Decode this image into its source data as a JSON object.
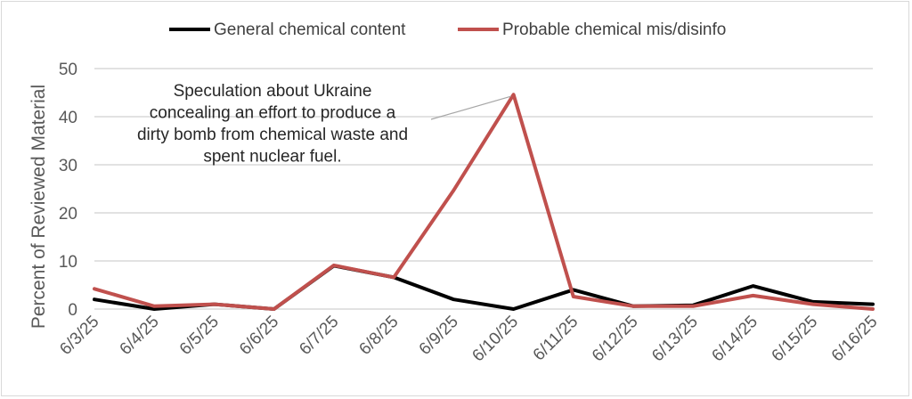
{
  "chart_data": {
    "type": "line",
    "categories": [
      "6/3/25",
      "6/4/25",
      "6/5/25",
      "6/6/25",
      "6/7/25",
      "6/8/25",
      "6/9/25",
      "6/10/25",
      "6/11/25",
      "6/12/25",
      "6/13/25",
      "6/14/25",
      "6/15/25",
      "6/16/25"
    ],
    "series": [
      {
        "name": "General chemical content",
        "color": "#000000",
        "values": [
          2.0,
          0.0,
          1.0,
          0.0,
          9.0,
          6.6,
          2.0,
          0.0,
          4.0,
          0.6,
          0.8,
          4.8,
          1.5,
          1.0
        ]
      },
      {
        "name": "Probable chemical mis/disinfo",
        "color": "#c0504d",
        "values": [
          4.2,
          0.6,
          1.0,
          0.0,
          9.1,
          6.6,
          24.7,
          44.6,
          2.6,
          0.6,
          0.6,
          2.8,
          1.0,
          0.0
        ]
      }
    ],
    "xlabel": "",
    "ylabel": "Percent of Reviewed Material",
    "ylim": [
      0,
      50
    ],
    "yticks": [
      "0",
      "10",
      "20",
      "30",
      "40",
      "50"
    ],
    "grid": true,
    "legend_position": "top",
    "annotation": {
      "lines": [
        "Speculation about Ukraine",
        "concealing an effort to produce a",
        "dirty bomb from chemical waste and",
        "spent nuclear fuel."
      ],
      "target_category": "6/10/25",
      "target_series": 1
    }
  }
}
